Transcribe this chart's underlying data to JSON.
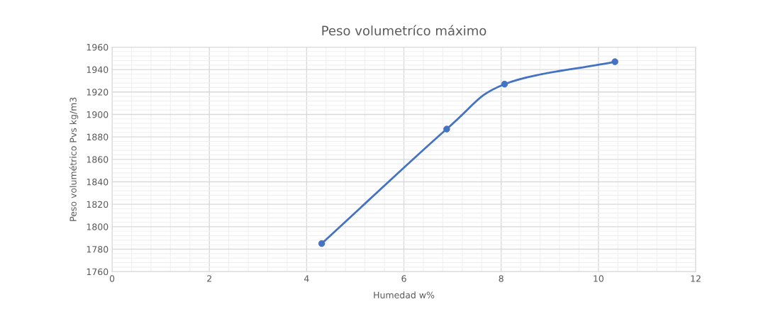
{
  "chart_data": {
    "type": "line",
    "title": "Peso volumetríco máximo",
    "xlabel": "Humedad w%",
    "ylabel": "Peso volumétrico Pvs kg/m3",
    "x": [
      4.31,
      6.88,
      8.07,
      10.34
    ],
    "series": [
      {
        "color": "#4472c4",
        "values": [
          1785,
          1887,
          1927,
          1947
        ]
      }
    ],
    "xlim": [
      0,
      12
    ],
    "xticks": [
      0,
      2,
      4,
      6,
      8,
      10,
      12
    ],
    "ylim": [
      1760,
      1960
    ],
    "yticks": [
      1760,
      1780,
      1800,
      1820,
      1840,
      1860,
      1880,
      1900,
      1920,
      1940,
      1960
    ],
    "grid": true,
    "marker": "circle",
    "line_style": "solid",
    "legend": false
  }
}
